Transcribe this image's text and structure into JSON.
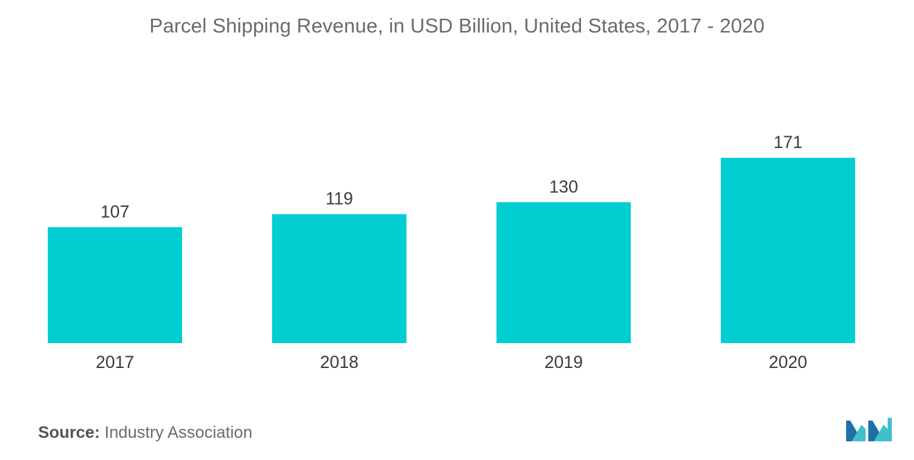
{
  "chart_data": {
    "type": "bar",
    "title": "Parcel Shipping Revenue, in USD Billion, United States,  2017 - 2020",
    "categories": [
      "2017",
      "2018",
      "2019",
      "2020"
    ],
    "values": [
      107,
      119,
      130,
      171
    ],
    "data_labels": [
      "107",
      "119",
      "130",
      "171"
    ],
    "xlabel": "",
    "ylabel": "",
    "ylim": [
      0,
      200
    ],
    "grid": false,
    "legend": "none",
    "colors": {
      "bar": "#00CED1",
      "axis": "#d0d0d0"
    }
  },
  "footer": {
    "source_label": "Source:",
    "source_text": "Industry Association"
  },
  "logo": {
    "icon": "mordor-intelligence-logo-icon",
    "colors": [
      "#1f6fa8",
      "#3fc1c9"
    ]
  }
}
